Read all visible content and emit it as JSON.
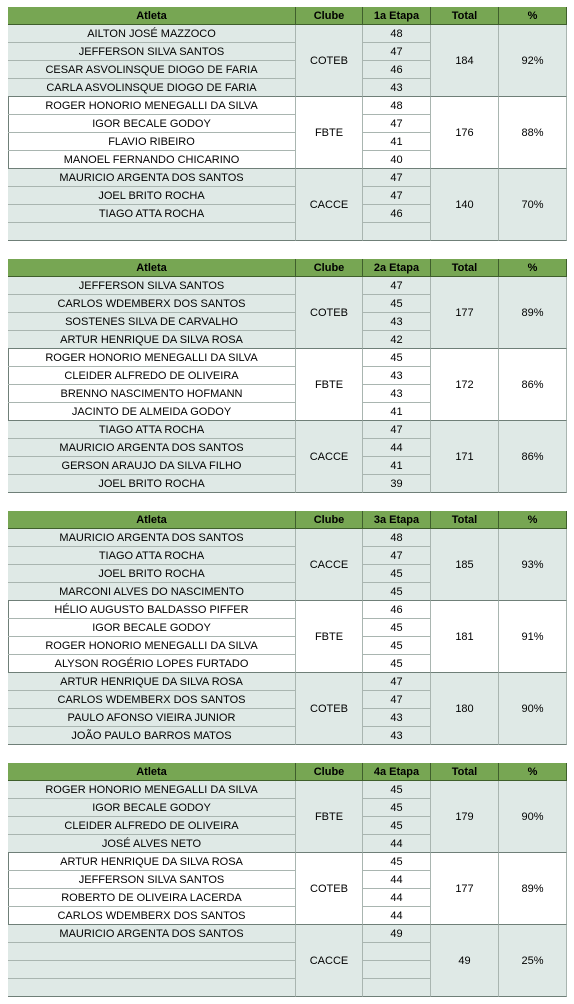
{
  "tables": [
    {
      "headers": [
        "Atleta",
        "Clube",
        "1a Etapa",
        "Total",
        "%"
      ],
      "groups": [
        {
          "club": "COTEB",
          "total": 184,
          "pct": "92%",
          "rows": [
            {
              "athlete": "AILTON JOSÉ MAZZOCO",
              "score": 48
            },
            {
              "athlete": "JEFFERSON SILVA SANTOS",
              "score": 47
            },
            {
              "athlete": "CESAR ASVOLINSQUE DIOGO DE FARIA",
              "score": 46
            },
            {
              "athlete": "CARLA ASVOLINSQUE DIOGO DE FARIA",
              "score": 43
            }
          ]
        },
        {
          "club": "FBTE",
          "total": 176,
          "pct": "88%",
          "rows": [
            {
              "athlete": "ROGER HONORIO MENEGALLI DA SILVA",
              "score": 48
            },
            {
              "athlete": "IGOR BECALE GODOY",
              "score": 47
            },
            {
              "athlete": "FLAVIO RIBEIRO",
              "score": 41
            },
            {
              "athlete": "MANOEL FERNANDO CHICARINO",
              "score": 40
            }
          ]
        },
        {
          "club": "CACCE",
          "total": 140,
          "pct": "70%",
          "rows": [
            {
              "athlete": "MAURICIO ARGENTA DOS SANTOS",
              "score": 47
            },
            {
              "athlete": "JOEL BRITO ROCHA",
              "score": 47
            },
            {
              "athlete": "TIAGO ATTA ROCHA",
              "score": 46
            }
          ]
        }
      ]
    },
    {
      "headers": [
        "Atleta",
        "Clube",
        "2a Etapa",
        "Total",
        "%"
      ],
      "groups": [
        {
          "club": "COTEB",
          "total": 177,
          "pct": "89%",
          "rows": [
            {
              "athlete": "JEFFERSON SILVA SANTOS",
              "score": 47
            },
            {
              "athlete": "CARLOS WDEMBERX DOS SANTOS",
              "score": 45
            },
            {
              "athlete": "SOSTENES SILVA DE CARVALHO",
              "score": 43
            },
            {
              "athlete": "ARTUR HENRIQUE DA SILVA ROSA",
              "score": 42
            }
          ]
        },
        {
          "club": "FBTE",
          "total": 172,
          "pct": "86%",
          "rows": [
            {
              "athlete": "ROGER HONORIO MENEGALLI DA SILVA",
              "score": 45
            },
            {
              "athlete": "CLEIDER ALFREDO DE OLIVEIRA",
              "score": 43
            },
            {
              "athlete": "BRENNO NASCIMENTO HOFMANN",
              "score": 43
            },
            {
              "athlete": "JACINTO DE ALMEIDA GODOY",
              "score": 41
            }
          ]
        },
        {
          "club": "CACCE",
          "total": 171,
          "pct": "86%",
          "rows": [
            {
              "athlete": "TIAGO ATTA ROCHA",
              "score": 47
            },
            {
              "athlete": "MAURICIO ARGENTA DOS SANTOS",
              "score": 44
            },
            {
              "athlete": "GERSON ARAUJO DA SILVA FILHO",
              "score": 41
            },
            {
              "athlete": "JOEL BRITO ROCHA",
              "score": 39
            }
          ]
        }
      ]
    },
    {
      "headers": [
        "Atleta",
        "Clube",
        "3a Etapa",
        "Total",
        "%"
      ],
      "groups": [
        {
          "club": "CACCE",
          "total": 185,
          "pct": "93%",
          "rows": [
            {
              "athlete": "MAURICIO ARGENTA DOS SANTOS",
              "score": 48
            },
            {
              "athlete": "TIAGO ATTA ROCHA",
              "score": 47
            },
            {
              "athlete": "JOEL BRITO ROCHA",
              "score": 45
            },
            {
              "athlete": "MARCONI ALVES DO NASCIMENTO",
              "score": 45
            }
          ]
        },
        {
          "club": "FBTE",
          "total": 181,
          "pct": "91%",
          "rows": [
            {
              "athlete": "HÉLIO AUGUSTO BALDASSO PIFFER",
              "score": 46
            },
            {
              "athlete": "IGOR BECALE GODOY",
              "score": 45
            },
            {
              "athlete": "ROGER HONORIO MENEGALLI DA SILVA",
              "score": 45
            },
            {
              "athlete": "ALYSON ROGÉRIO LOPES FURTADO",
              "score": 45
            }
          ]
        },
        {
          "club": "COTEB",
          "total": 180,
          "pct": "90%",
          "rows": [
            {
              "athlete": "ARTUR HENRIQUE DA SILVA ROSA",
              "score": 47
            },
            {
              "athlete": "CARLOS WDEMBERX DOS SANTOS",
              "score": 47
            },
            {
              "athlete": "PAULO AFONSO VIEIRA JUNIOR",
              "score": 43
            },
            {
              "athlete": "JOÃO PAULO BARROS MATOS",
              "score": 43
            }
          ]
        }
      ]
    },
    {
      "headers": [
        "Atleta",
        "Clube",
        "4a Etapa",
        "Total",
        "%"
      ],
      "groups": [
        {
          "club": "FBTE",
          "total": 179,
          "pct": "90%",
          "rows": [
            {
              "athlete": "ROGER HONORIO MENEGALLI DA SILVA",
              "score": 45
            },
            {
              "athlete": "IGOR BECALE GODOY",
              "score": 45
            },
            {
              "athlete": "CLEIDER ALFREDO DE OLIVEIRA",
              "score": 45
            },
            {
              "athlete": "JOSÉ ALVES NETO",
              "score": 44
            }
          ]
        },
        {
          "club": "COTEB",
          "total": 177,
          "pct": "89%",
          "rows": [
            {
              "athlete": "ARTUR HENRIQUE DA SILVA ROSA",
              "score": 45
            },
            {
              "athlete": "JEFFERSON SILVA SANTOS",
              "score": 44
            },
            {
              "athlete": "ROBERTO DE OLIVEIRA LACERDA",
              "score": 44
            },
            {
              "athlete": "CARLOS WDEMBERX DOS SANTOS",
              "score": 44
            }
          ]
        },
        {
          "club": "CACCE",
          "total": 49,
          "pct": "25%",
          "rows": [
            {
              "athlete": "MAURICIO ARGENTA DOS SANTOS",
              "score": 49
            }
          ]
        }
      ]
    }
  ]
}
